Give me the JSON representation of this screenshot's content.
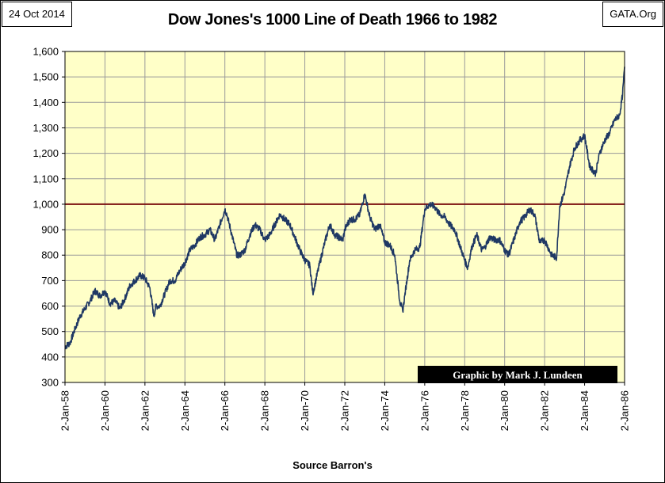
{
  "header": {
    "date": "24 Oct 2014",
    "site": "GATA.Org"
  },
  "chart_data": {
    "type": "line",
    "title": "Dow Jones's 1000 Line of Death 1966 to 1982",
    "xlabel": "Source Barron's",
    "ylabel": "",
    "credit": "Graphic by Mark J. Lundeen",
    "ylim": [
      300,
      1600
    ],
    "y_ticks": [
      300,
      400,
      500,
      600,
      700,
      800,
      900,
      1000,
      1100,
      1200,
      1300,
      1400,
      1500,
      1600
    ],
    "y_tick_labels": [
      "300",
      "400",
      "500",
      "600",
      "700",
      "800",
      "900",
      "1,000",
      "1,100",
      "1,200",
      "1,300",
      "1,400",
      "1,500",
      "1,600"
    ],
    "xlim": [
      1958,
      1986
    ],
    "x_ticks": [
      1958,
      1960,
      1962,
      1964,
      1966,
      1968,
      1970,
      1972,
      1974,
      1976,
      1978,
      1980,
      1982,
      1984,
      1986
    ],
    "x_tick_labels": [
      "2-Jan-58",
      "2-Jan-60",
      "2-Jan-62",
      "2-Jan-64",
      "2-Jan-66",
      "2-Jan-68",
      "2-Jan-70",
      "2-Jan-72",
      "2-Jan-74",
      "2-Jan-76",
      "2-Jan-78",
      "2-Jan-80",
      "2-Jan-82",
      "2-Jan-84",
      "2-Jan-86"
    ],
    "grid": true,
    "colors": {
      "background": "#ffffc8",
      "series": "#1f3864",
      "reference_line": "#7b1010",
      "grid": "#9a9a9a",
      "credit_bg": "#000000",
      "credit_text": "#ffffff"
    },
    "reference_line": {
      "y": 1000
    },
    "series": [
      {
        "x": [
          1958.0,
          1958.25,
          1958.5,
          1958.75,
          1959.0,
          1959.25,
          1959.5,
          1959.75,
          1960.0,
          1960.25,
          1960.5,
          1960.75,
          1961.0,
          1961.25,
          1961.5,
          1961.75,
          1962.0,
          1962.25,
          1962.45,
          1962.55,
          1962.75,
          1963.0,
          1963.25,
          1963.5,
          1963.75,
          1964.0,
          1964.25,
          1964.5,
          1964.75,
          1965.0,
          1965.25,
          1965.5,
          1965.75,
          1966.0,
          1966.1,
          1966.35,
          1966.6,
          1966.75,
          1967.0,
          1967.25,
          1967.5,
          1967.75,
          1968.0,
          1968.25,
          1968.5,
          1968.75,
          1969.0,
          1969.25,
          1969.5,
          1969.75,
          1970.0,
          1970.25,
          1970.4,
          1970.75,
          1971.0,
          1971.25,
          1971.5,
          1971.9,
          1972.0,
          1972.25,
          1972.5,
          1972.75,
          1973.0,
          1973.25,
          1973.5,
          1973.75,
          1974.0,
          1974.25,
          1974.5,
          1974.75,
          1974.9,
          1975.0,
          1975.25,
          1975.5,
          1975.75,
          1976.0,
          1976.25,
          1976.5,
          1976.75,
          1977.0,
          1977.25,
          1977.5,
          1977.75,
          1978.0,
          1978.15,
          1978.35,
          1978.6,
          1978.85,
          1979.0,
          1979.25,
          1979.5,
          1979.75,
          1980.0,
          1980.2,
          1980.5,
          1980.75,
          1981.0,
          1981.25,
          1981.5,
          1981.75,
          1982.0,
          1982.35,
          1982.6,
          1982.75,
          1983.0,
          1983.25,
          1983.5,
          1983.75,
          1984.0,
          1984.25,
          1984.55,
          1984.75,
          1985.0,
          1985.25,
          1985.5,
          1985.75,
          1985.9,
          1986.0
        ],
        "values": [
          440,
          455,
          510,
          560,
          590,
          620,
          660,
          640,
          660,
          610,
          620,
          590,
          630,
          680,
          700,
          720,
          710,
          670,
          560,
          600,
          600,
          650,
          700,
          700,
          740,
          770,
          820,
          840,
          870,
          880,
          900,
          860,
          920,
          980,
          960,
          880,
          800,
          800,
          820,
          880,
          920,
          900,
          860,
          880,
          920,
          960,
          940,
          920,
          870,
          820,
          780,
          760,
          650,
          770,
          850,
          920,
          880,
          860,
          900,
          940,
          940,
          960,
          1040,
          950,
          900,
          920,
          850,
          840,
          800,
          620,
          580,
          640,
          780,
          820,
          830,
          980,
          1000,
          990,
          960,
          950,
          920,
          900,
          840,
          780,
          750,
          830,
          880,
          820,
          830,
          870,
          860,
          860,
          820,
          800,
          870,
          930,
          950,
          980,
          960,
          850,
          860,
          800,
          790,
          990,
          1050,
          1150,
          1220,
          1250,
          1270,
          1150,
          1120,
          1200,
          1250,
          1280,
          1330,
          1350,
          1430,
          1540
        ]
      }
    ]
  }
}
